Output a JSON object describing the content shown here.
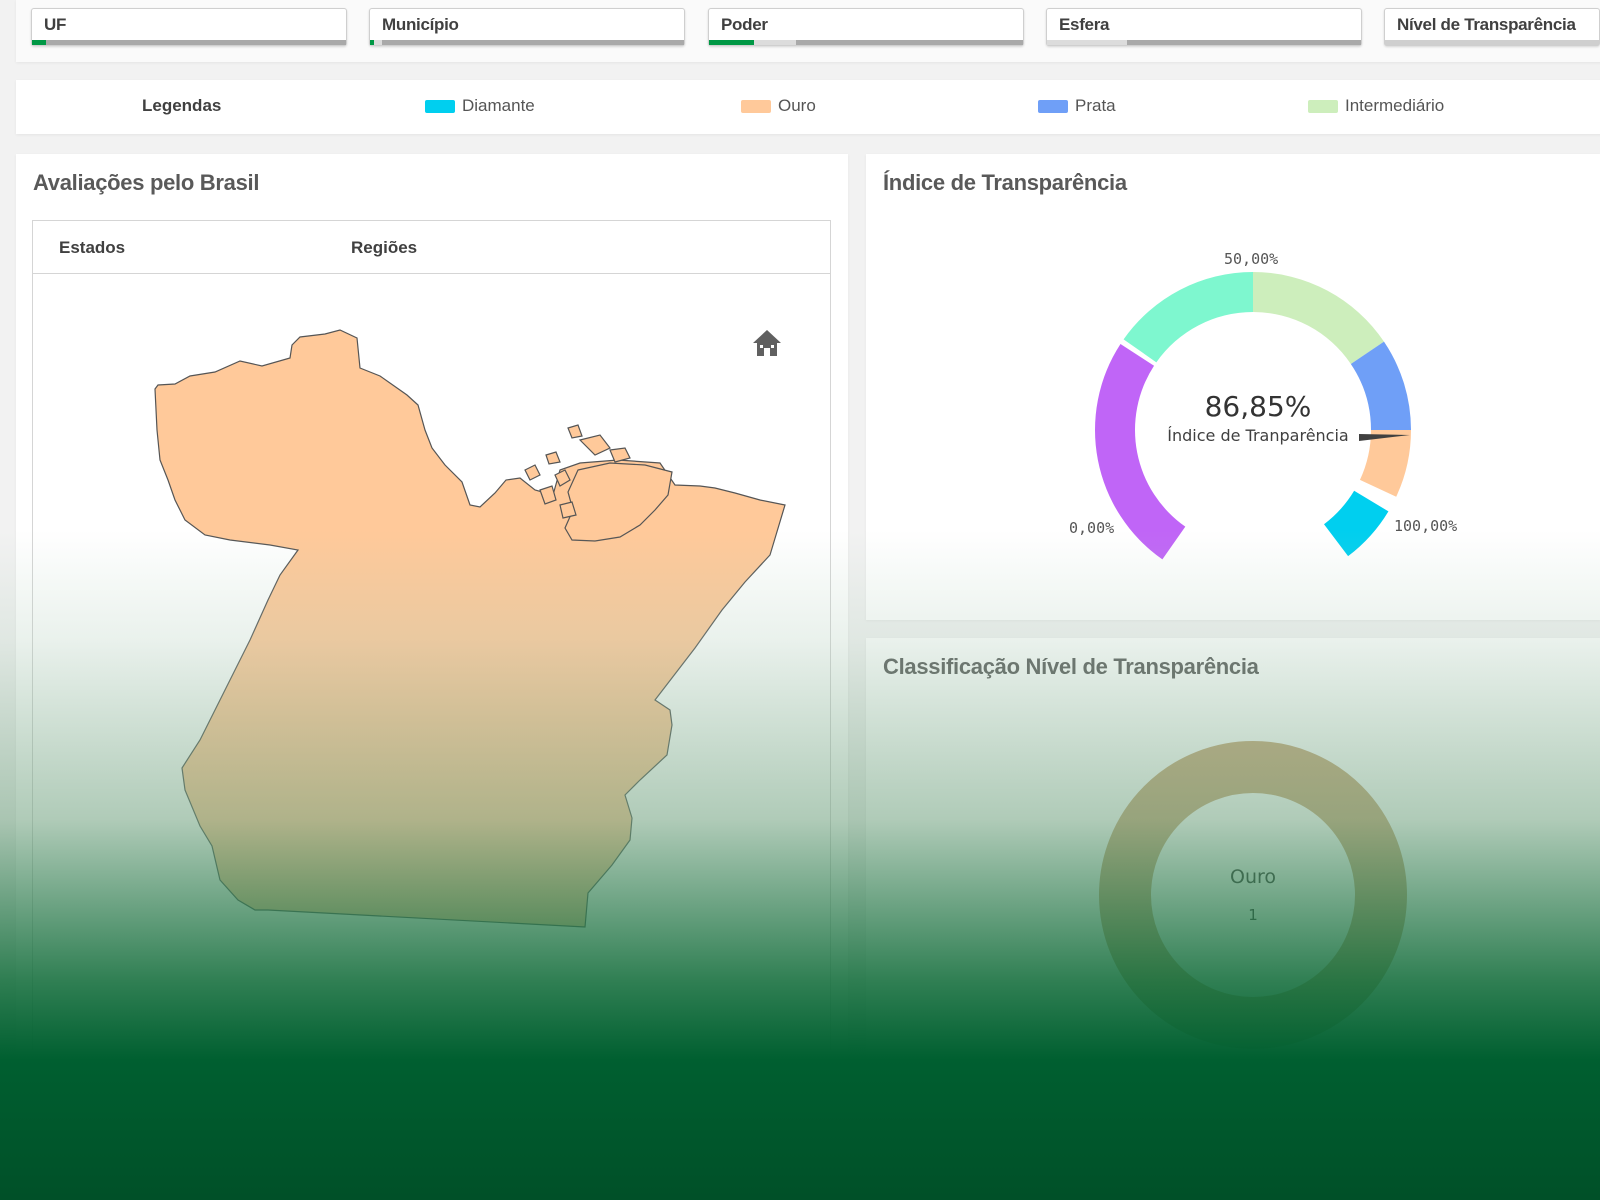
{
  "filters": [
    {
      "label": "UF"
    },
    {
      "label": "Município"
    },
    {
      "label": "Poder"
    },
    {
      "label": "Esfera"
    },
    {
      "label": "Nível de Transparência"
    }
  ],
  "legend": {
    "title": "Legendas",
    "items": [
      {
        "label": "Diamante",
        "color": "#00cfef"
      },
      {
        "label": "Ouro",
        "color": "#ffc99a"
      },
      {
        "label": "Prata",
        "color": "#6f9ff7"
      },
      {
        "label": "Intermediário",
        "color": "#cdeebc"
      }
    ]
  },
  "map_panel": {
    "title": "Avaliações pelo Brasil",
    "tabs": [
      "Estados",
      "Regiões"
    ],
    "home_icon": "home-icon",
    "state_fill_color": "#ffc99a"
  },
  "gauge_panel": {
    "title": "Índice de Transparência",
    "value": "86,85%",
    "subtitle": "Índice de Tranparência",
    "min_label": "0,00%",
    "mid_label": "50,00%",
    "max_label": "100,00%",
    "segment_colors": [
      "#c065f7",
      "#7ef7cf",
      "#cdeebc",
      "#6f9ff7",
      "#ffc99a",
      "#00cfef"
    ]
  },
  "classification_panel": {
    "title": "Classificação Nível de Transparência",
    "center_label": "Ouro",
    "center_count": "1",
    "ring_color": "#c9a87c"
  },
  "chart_data": {
    "type": "pie",
    "categories": [
      "Ouro"
    ],
    "values": [
      1
    ]
  }
}
